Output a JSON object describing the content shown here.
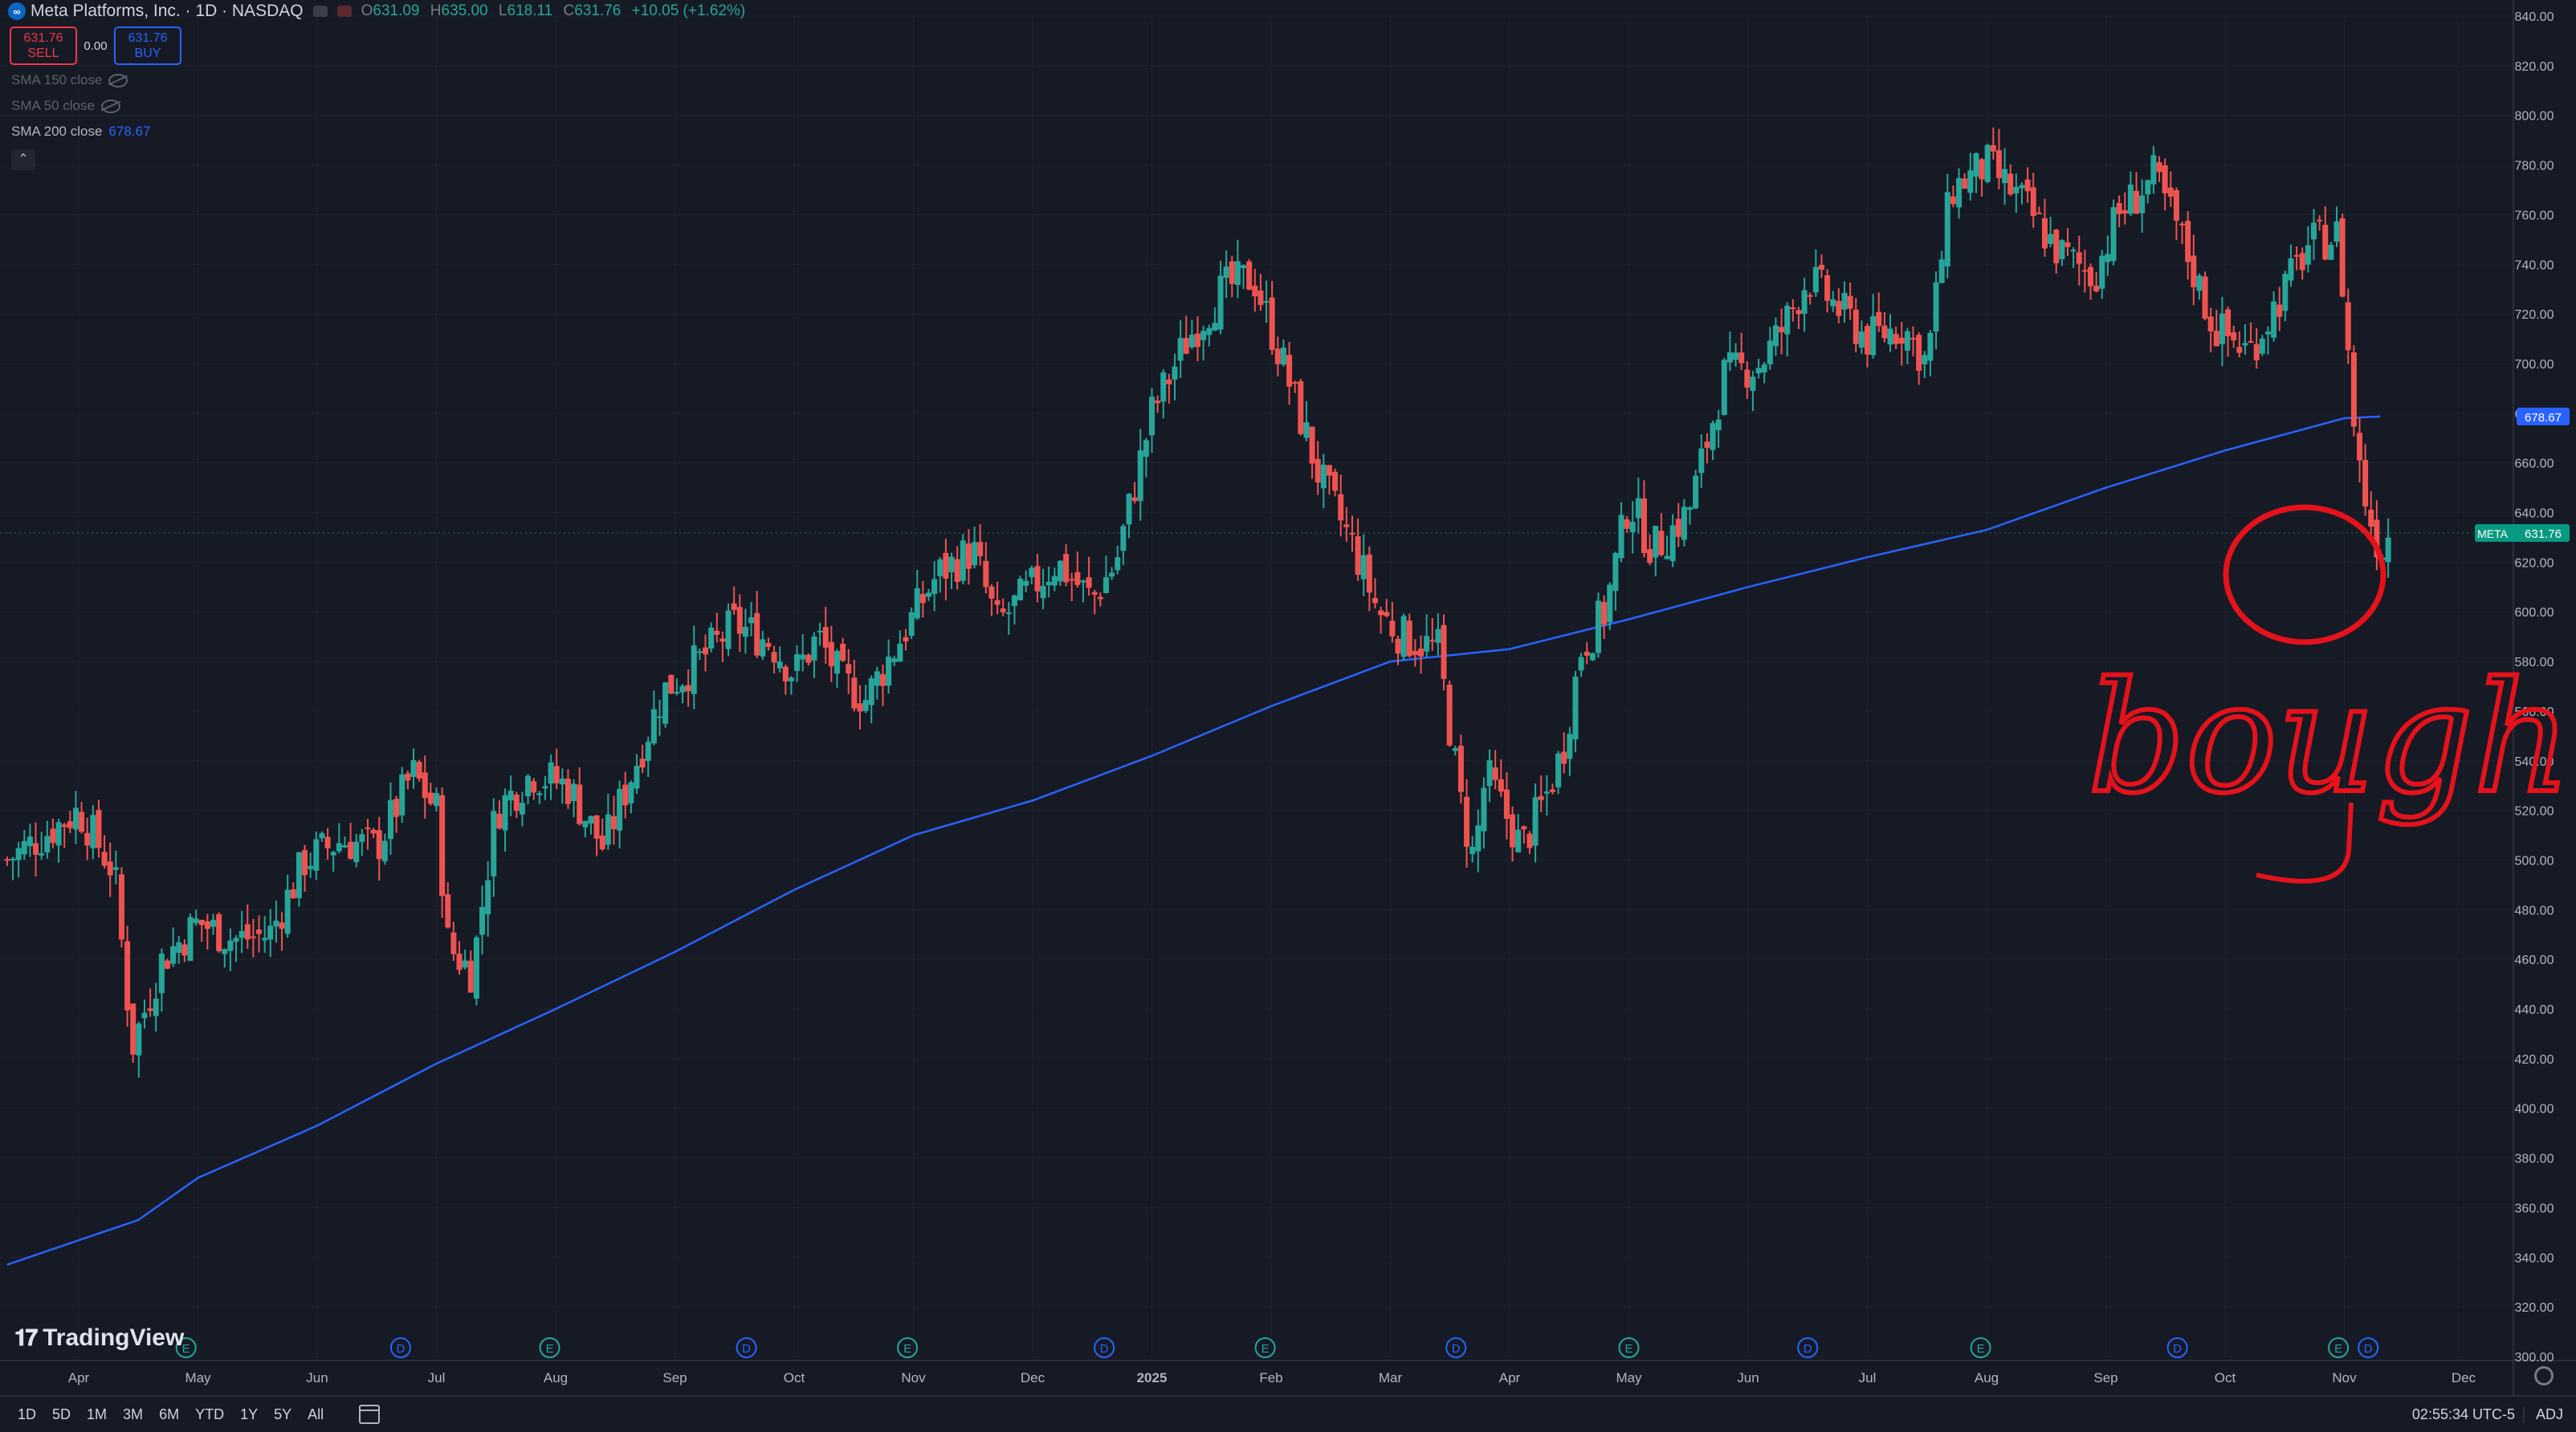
{
  "header": {
    "symbol_title": "Meta Platforms, Inc. · 1D · NASDAQ",
    "logo_letter": "∞",
    "ohlc": [
      {
        "key": "O",
        "value": "631.09"
      },
      {
        "key": "H",
        "value": "635.00"
      },
      {
        "key": "L",
        "value": "618.11"
      },
      {
        "key": "C",
        "value": "631.76"
      },
      {
        "key": "",
        "value": "+10.05 (+1.62%)"
      }
    ]
  },
  "trade": {
    "sell_price": "631.76",
    "sell_label": "SELL",
    "spread": "0.00",
    "buy_price": "631.76",
    "buy_label": "BUY"
  },
  "indicators": [
    {
      "name": "SMA 150 close",
      "value": "",
      "visible": false
    },
    {
      "name": "SMA 50 close",
      "value": "",
      "visible": false
    },
    {
      "name": "SMA 200 close",
      "value": "678.67",
      "visible": true
    }
  ],
  "brand": "TradingView",
  "bottombar": {
    "ranges": [
      "1D",
      "5D",
      "1M",
      "3M",
      "6M",
      "YTD",
      "1Y",
      "5Y",
      "All"
    ],
    "clock": "02:55:34 UTC-5",
    "adj": "ADJ"
  },
  "colors": {
    "background": "#161a25",
    "up": "#26a69a",
    "down": "#ef5350",
    "sma": "#2962ff",
    "grid": "#1f2330",
    "annotation": "#e5121b"
  },
  "annotation": {
    "text": "bought"
  },
  "chart_data": {
    "type": "candlestick",
    "symbol": "META",
    "y_range": [
      300,
      840
    ],
    "y_ticks": [
      "300.00",
      "320.00",
      "340.00",
      "360.00",
      "380.00",
      "400.00",
      "420.00",
      "440.00",
      "460.00",
      "480.00",
      "500.00",
      "520.00",
      "540.00",
      "560.00",
      "580.00",
      "600.00",
      "620.00",
      "640.00",
      "660.00",
      "680.00",
      "700.00",
      "720.00",
      "740.00",
      "760.00",
      "780.00",
      "800.00",
      "820.00",
      "840.00"
    ],
    "x_labels": [
      {
        "label": "Apr",
        "month": 0
      },
      {
        "label": "May",
        "month": 1
      },
      {
        "label": "Jun",
        "month": 2
      },
      {
        "label": "Jul",
        "month": 3
      },
      {
        "label": "Aug",
        "month": 4
      },
      {
        "label": "Sep",
        "month": 5
      },
      {
        "label": "Oct",
        "month": 6
      },
      {
        "label": "Nov",
        "month": 7
      },
      {
        "label": "Dec",
        "month": 8
      },
      {
        "label": "2025",
        "month": 9
      },
      {
        "label": "Feb",
        "month": 10
      },
      {
        "label": "Mar",
        "month": 11
      },
      {
        "label": "Apr",
        "month": 12
      },
      {
        "label": "May",
        "month": 13
      },
      {
        "label": "Jun",
        "month": 14
      },
      {
        "label": "Jul",
        "month": 15
      },
      {
        "label": "Aug",
        "month": 16
      },
      {
        "label": "Sep",
        "month": 17
      },
      {
        "label": "Oct",
        "month": 18
      },
      {
        "label": "Nov",
        "month": 19
      },
      {
        "label": "Dec",
        "month": 20
      }
    ],
    "events": [
      {
        "type": "E",
        "month": 0.9
      },
      {
        "type": "D",
        "month": 2.7
      },
      {
        "type": "E",
        "month": 3.95
      },
      {
        "type": "D",
        "month": 5.6
      },
      {
        "type": "E",
        "month": 6.95
      },
      {
        "type": "D",
        "month": 8.6
      },
      {
        "type": "E",
        "month": 9.95
      },
      {
        "type": "D",
        "month": 11.55
      },
      {
        "type": "E",
        "month": 13.0
      },
      {
        "type": "D",
        "month": 14.5
      },
      {
        "type": "E",
        "month": 15.95
      },
      {
        "type": "D",
        "month": 17.6
      },
      {
        "type": "E",
        "month": 18.95
      },
      {
        "type": "D",
        "month": 19.2
      }
    ],
    "anchors": [
      {
        "m": -0.6,
        "p": 500
      },
      {
        "m": 0.0,
        "p": 520
      },
      {
        "m": 0.3,
        "p": 495
      },
      {
        "m": 0.45,
        "p": 425
      },
      {
        "m": 0.7,
        "p": 460
      },
      {
        "m": 1.0,
        "p": 475
      },
      {
        "m": 1.3,
        "p": 468
      },
      {
        "m": 1.6,
        "p": 470
      },
      {
        "m": 1.9,
        "p": 500
      },
      {
        "m": 2.2,
        "p": 508
      },
      {
        "m": 2.5,
        "p": 505
      },
      {
        "m": 2.8,
        "p": 535
      },
      {
        "m": 3.0,
        "p": 520
      },
      {
        "m": 3.1,
        "p": 465
      },
      {
        "m": 3.3,
        "p": 455
      },
      {
        "m": 3.5,
        "p": 520
      },
      {
        "m": 3.8,
        "p": 535
      },
      {
        "m": 4.1,
        "p": 530
      },
      {
        "m": 4.4,
        "p": 505
      },
      {
        "m": 4.6,
        "p": 530
      },
      {
        "m": 4.9,
        "p": 568
      },
      {
        "m": 5.2,
        "p": 580
      },
      {
        "m": 5.5,
        "p": 595
      },
      {
        "m": 5.8,
        "p": 588
      },
      {
        "m": 6.0,
        "p": 575
      },
      {
        "m": 6.2,
        "p": 590
      },
      {
        "m": 6.4,
        "p": 572
      },
      {
        "m": 6.6,
        "p": 565
      },
      {
        "m": 6.9,
        "p": 590
      },
      {
        "m": 7.2,
        "p": 615
      },
      {
        "m": 7.5,
        "p": 625
      },
      {
        "m": 7.7,
        "p": 595
      },
      {
        "m": 7.9,
        "p": 605
      },
      {
        "m": 8.2,
        "p": 620
      },
      {
        "m": 8.5,
        "p": 605
      },
      {
        "m": 8.7,
        "p": 620
      },
      {
        "m": 9.0,
        "p": 680
      },
      {
        "m": 9.3,
        "p": 710
      },
      {
        "m": 9.6,
        "p": 730
      },
      {
        "m": 9.85,
        "p": 735
      },
      {
        "m": 10.1,
        "p": 700
      },
      {
        "m": 10.4,
        "p": 655
      },
      {
        "m": 10.7,
        "p": 625
      },
      {
        "m": 10.9,
        "p": 600
      },
      {
        "m": 11.1,
        "p": 590
      },
      {
        "m": 11.4,
        "p": 585
      },
      {
        "m": 11.6,
        "p": 520
      },
      {
        "m": 11.7,
        "p": 500
      },
      {
        "m": 11.8,
        "p": 535
      },
      {
        "m": 12.1,
        "p": 505
      },
      {
        "m": 12.3,
        "p": 525
      },
      {
        "m": 12.45,
        "p": 545
      },
      {
        "m": 12.6,
        "p": 585
      },
      {
        "m": 12.8,
        "p": 600
      },
      {
        "m": 13.0,
        "p": 645
      },
      {
        "m": 13.2,
        "p": 625
      },
      {
        "m": 13.5,
        "p": 640
      },
      {
        "m": 13.8,
        "p": 695
      },
      {
        "m": 14.1,
        "p": 700
      },
      {
        "m": 14.3,
        "p": 715
      },
      {
        "m": 14.5,
        "p": 735
      },
      {
        "m": 14.8,
        "p": 720
      },
      {
        "m": 15.0,
        "p": 710
      },
      {
        "m": 15.3,
        "p": 715
      },
      {
        "m": 15.5,
        "p": 700
      },
      {
        "m": 15.7,
        "p": 770
      },
      {
        "m": 16.0,
        "p": 780
      },
      {
        "m": 16.3,
        "p": 765
      },
      {
        "m": 16.6,
        "p": 745
      },
      {
        "m": 16.9,
        "p": 735
      },
      {
        "m": 17.1,
        "p": 760
      },
      {
        "m": 17.4,
        "p": 775
      },
      {
        "m": 17.6,
        "p": 755
      },
      {
        "m": 17.9,
        "p": 715
      },
      {
        "m": 18.2,
        "p": 705
      },
      {
        "m": 18.5,
        "p": 730
      },
      {
        "m": 18.7,
        "p": 748
      },
      {
        "m": 18.95,
        "p": 752
      },
      {
        "m": 19.1,
        "p": 665
      },
      {
        "m": 19.2,
        "p": 640
      },
      {
        "m": 19.3,
        "p": 625
      },
      {
        "m": 19.38,
        "p": 631.76
      }
    ],
    "sma200": {
      "name": "SMA 200 close",
      "points": [
        {
          "m": -0.6,
          "p": 337
        },
        {
          "m": 0.5,
          "p": 355
        },
        {
          "m": 1.0,
          "p": 372
        },
        {
          "m": 2.0,
          "p": 393
        },
        {
          "m": 3.0,
          "p": 418
        },
        {
          "m": 4.0,
          "p": 440
        },
        {
          "m": 5.0,
          "p": 463
        },
        {
          "m": 6.0,
          "p": 488
        },
        {
          "m": 7.0,
          "p": 510
        },
        {
          "m": 8.0,
          "p": 524
        },
        {
          "m": 9.0,
          "p": 542
        },
        {
          "m": 10.0,
          "p": 562
        },
        {
          "m": 11.0,
          "p": 580
        },
        {
          "m": 12.0,
          "p": 585
        },
        {
          "m": 13.0,
          "p": 597
        },
        {
          "m": 14.0,
          "p": 610
        },
        {
          "m": 15.0,
          "p": 622
        },
        {
          "m": 16.0,
          "p": 633
        },
        {
          "m": 17.0,
          "p": 650
        },
        {
          "m": 18.0,
          "p": 665
        },
        {
          "m": 19.0,
          "p": 678
        },
        {
          "m": 19.3,
          "p": 678.67
        }
      ]
    },
    "last": {
      "label": "META",
      "value": "631.76",
      "price": 631.76
    },
    "sma_last": {
      "value": "678.67",
      "price": 678.67
    }
  }
}
